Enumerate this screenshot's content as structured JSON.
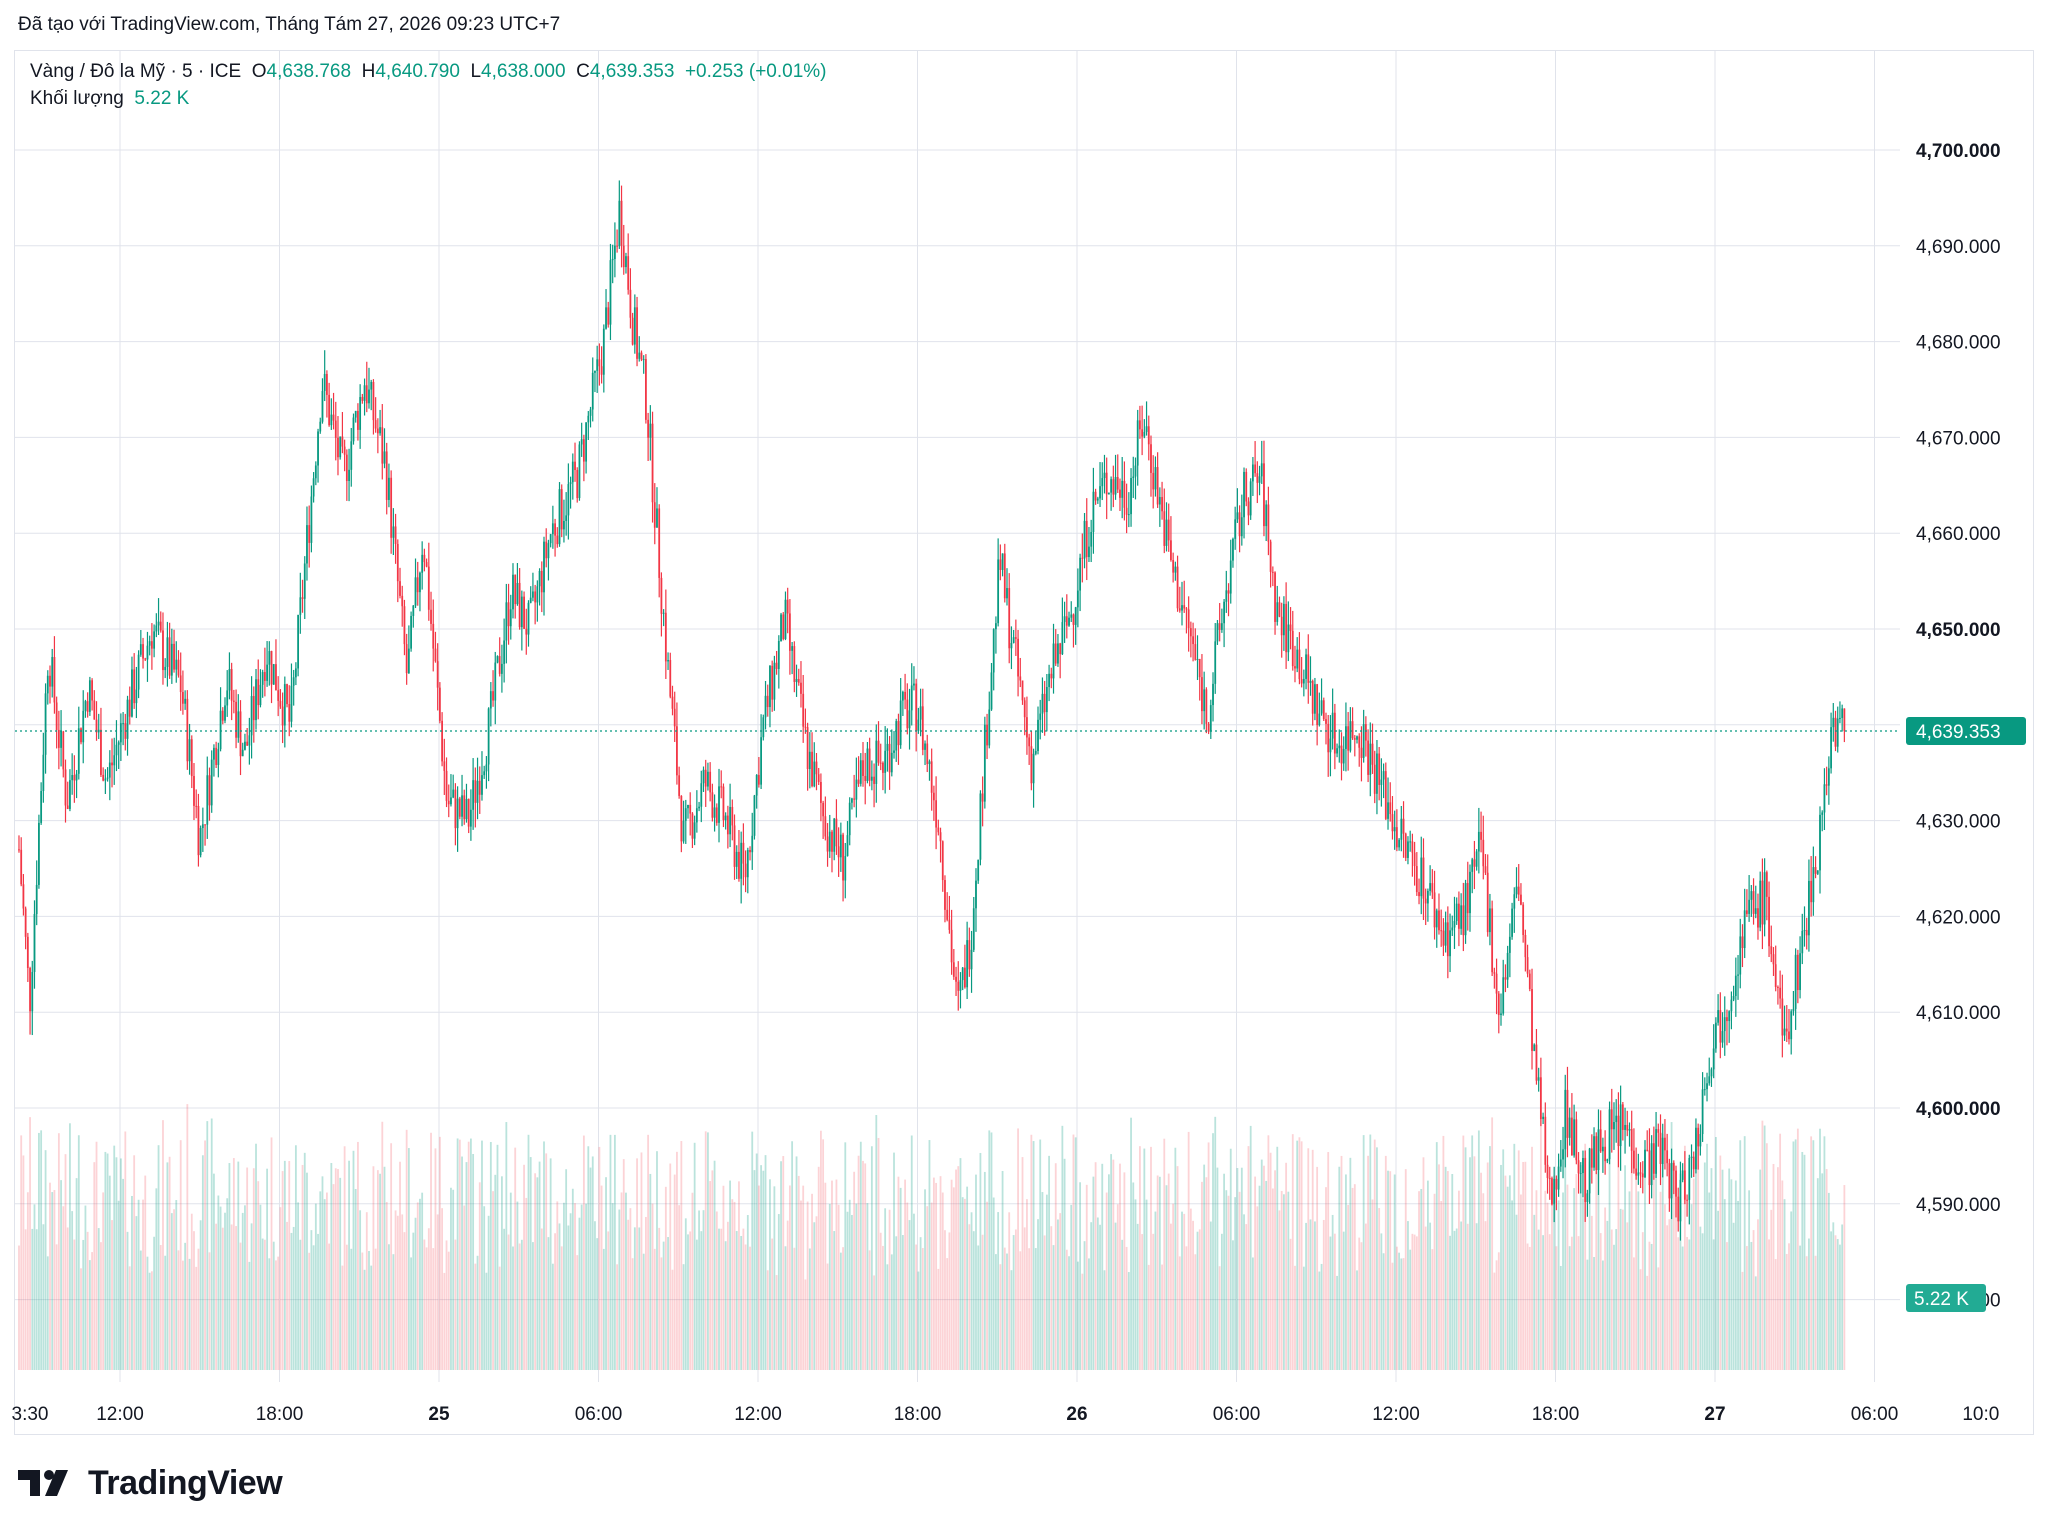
{
  "header": {
    "caption": "Đã tạo với TradingView.com, Tháng Tám 27, 2026 09:23 UTC+7"
  },
  "legend": {
    "symbol": "Vàng / Đô la Mỹ · 5 · ICE",
    "open_label": "O",
    "open": "4,638.768",
    "high_label": "H",
    "high": "4,640.790",
    "low_label": "L",
    "low": "4,638.000",
    "close_label": "C",
    "close": "4,639.353",
    "change": "+0.253 (+0.01%)",
    "volume_label": "Khối lượng",
    "volume_value": "5.22 K"
  },
  "footer": {
    "brand": "TradingView"
  },
  "colors": {
    "up": "#089981",
    "down": "#f23645",
    "grid": "#e0e3eb",
    "text": "#131722"
  },
  "chart_data": {
    "type": "candlestick",
    "symbol": "Vàng / Đô la Mỹ",
    "interval": "5",
    "exchange": "ICE",
    "y_axis": {
      "ticks": [
        "4,700.000",
        "4,690.000",
        "4,680.000",
        "4,670.000",
        "4,660.000",
        "4,650.000",
        "4,640.000",
        "4,630.000",
        "4,620.000",
        "4,610.000",
        "4,600.000",
        "4,590.000",
        "4,580.000"
      ],
      "tick_values": [
        4700,
        4690,
        4680,
        4670,
        4660,
        4650,
        4640,
        4630,
        4620,
        4610,
        4600,
        4590,
        4580
      ],
      "bold_ticks": [
        4700,
        4650,
        4600
      ],
      "range": [
        4576,
        4704
      ]
    },
    "x_axis": {
      "labels": [
        "3:30",
        "12:00",
        "18:00",
        "25",
        "06:00",
        "12:00",
        "18:00",
        "26",
        "06:00",
        "12:00",
        "18:00",
        "27",
        "06:00",
        "10:0"
      ],
      "bold_labels": [
        "25",
        "26",
        "27"
      ],
      "grid_hours": [
        -1,
        12,
        18,
        24,
        30,
        36,
        42,
        48,
        54,
        60,
        66,
        72,
        78,
        82
      ],
      "start_hour": 8.2,
      "end_hour": 81.5
    },
    "last_price": 4639.353,
    "last_price_label": "4,639.353",
    "last_volume_label": "5.22 K",
    "price_path": [
      [
        8.2,
        4627
      ],
      [
        8.6,
        4611
      ],
      [
        9.3,
        4648
      ],
      [
        10.0,
        4632
      ],
      [
        10.8,
        4644
      ],
      [
        11.5,
        4634
      ],
      [
        12.2,
        4641
      ],
      [
        13.2,
        4650
      ],
      [
        14.3,
        4644
      ],
      [
        15.0,
        4628
      ],
      [
        16.0,
        4645
      ],
      [
        16.7,
        4637
      ],
      [
        17.5,
        4648
      ],
      [
        18.4,
        4640
      ],
      [
        18.8,
        4652
      ],
      [
        19.6,
        4676
      ],
      [
        20.4,
        4666
      ],
      [
        21.2,
        4676
      ],
      [
        22.0,
        4667
      ],
      [
        22.8,
        4645
      ],
      [
        23.4,
        4660
      ],
      [
        24.3,
        4632
      ],
      [
        25.1,
        4630
      ],
      [
        25.9,
        4640
      ],
      [
        26.7,
        4654
      ],
      [
        27.4,
        4650
      ],
      [
        28.2,
        4660
      ],
      [
        29.2,
        4666
      ],
      [
        30.2,
        4680
      ],
      [
        30.8,
        4694
      ],
      [
        31.3,
        4682
      ],
      [
        31.8,
        4674
      ],
      [
        32.6,
        4646
      ],
      [
        33.2,
        4628
      ],
      [
        34.0,
        4634
      ],
      [
        34.8,
        4630
      ],
      [
        35.5,
        4624
      ],
      [
        36.2,
        4640
      ],
      [
        37.0,
        4651
      ],
      [
        37.8,
        4638
      ],
      [
        38.5,
        4630
      ],
      [
        39.2,
        4626
      ],
      [
        40.0,
        4636
      ],
      [
        40.7,
        4636
      ],
      [
        41.4,
        4641
      ],
      [
        42.0,
        4642
      ],
      [
        42.8,
        4630
      ],
      [
        43.5,
        4610
      ],
      [
        44.0,
        4618
      ],
      [
        44.6,
        4640
      ],
      [
        45.1,
        4657
      ],
      [
        45.6,
        4648
      ],
      [
        46.3,
        4636
      ],
      [
        47.0,
        4645
      ],
      [
        47.8,
        4652
      ],
      [
        48.5,
        4662
      ],
      [
        49.2,
        4666
      ],
      [
        49.9,
        4664
      ],
      [
        50.5,
        4672
      ],
      [
        51.0,
        4665
      ],
      [
        51.6,
        4656
      ],
      [
        52.2,
        4650
      ],
      [
        52.9,
        4641
      ],
      [
        53.6,
        4654
      ],
      [
        54.3,
        4664
      ],
      [
        54.9,
        4666
      ],
      [
        55.5,
        4652
      ],
      [
        56.2,
        4648
      ],
      [
        57.0,
        4642
      ],
      [
        57.8,
        4638
      ],
      [
        58.6,
        4640
      ],
      [
        59.4,
        4634
      ],
      [
        60.2,
        4628
      ],
      [
        61.0,
        4624
      ],
      [
        61.8,
        4618
      ],
      [
        62.5,
        4620
      ],
      [
        63.2,
        4627
      ],
      [
        63.9,
        4610
      ],
      [
        64.6,
        4624
      ],
      [
        65.2,
        4605
      ],
      [
        65.8,
        4590
      ],
      [
        66.4,
        4600
      ],
      [
        67.1,
        4592
      ],
      [
        67.8,
        4597
      ],
      [
        68.6,
        4598
      ],
      [
        69.3,
        4594
      ],
      [
        70.0,
        4596
      ],
      [
        70.6,
        4590
      ],
      [
        71.2,
        4595
      ],
      [
        71.8,
        4606
      ],
      [
        72.5,
        4612
      ],
      [
        73.2,
        4620
      ],
      [
        73.9,
        4622
      ],
      [
        74.6,
        4606
      ],
      [
        75.3,
        4618
      ],
      [
        75.9,
        4628
      ],
      [
        76.4,
        4640
      ],
      [
        76.9,
        4639.353
      ]
    ]
  }
}
